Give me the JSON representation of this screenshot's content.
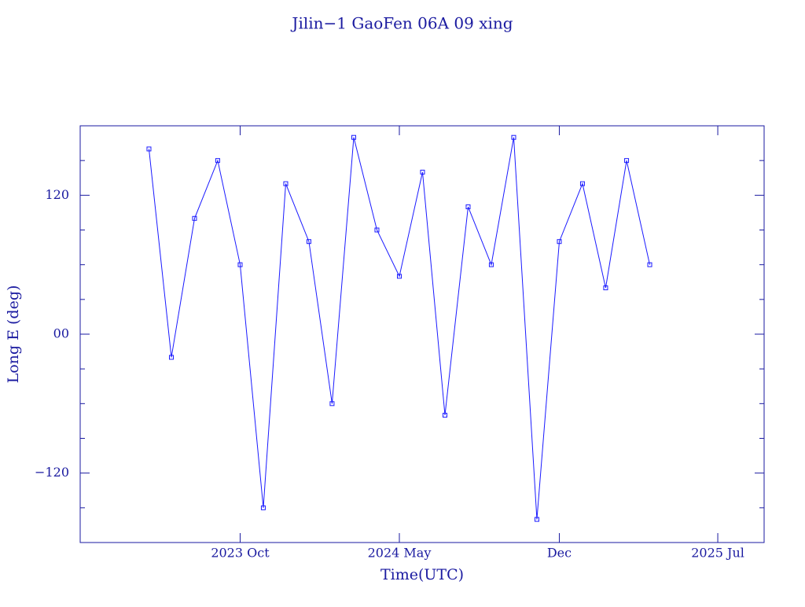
{
  "chart_data": {
    "type": "line",
    "title": "Jilin−1 GaoFen 06A 09 xing",
    "xlabel": "Time(UTC)",
    "ylabel": "Long E (deg)",
    "x": [
      "2023-06",
      "2023-07",
      "2023-08",
      "2023-09",
      "2023-10",
      "2023-11",
      "2023-12",
      "2024-01",
      "2024-02",
      "2024-03",
      "2024-04",
      "2024-05",
      "2024-06",
      "2024-07",
      "2024-08",
      "2024-09",
      "2024-10",
      "2024-11",
      "2024-12",
      "2025-01",
      "2025-02",
      "2025-03",
      "2025-04"
    ],
    "series": [
      {
        "name": "Long E",
        "color": "#1a1aff",
        "values": [
          160,
          -20,
          100,
          150,
          60,
          -150,
          130,
          80,
          -60,
          170,
          90,
          50,
          140,
          -70,
          110,
          60,
          170,
          -160,
          80,
          130,
          40,
          150,
          60
        ]
      }
    ],
    "xlim": [
      "2023-03",
      "2025-09"
    ],
    "xticks": [
      {
        "value": "2023-10",
        "label": "2023 Oct"
      },
      {
        "value": "2024-05",
        "label": "2024 May"
      },
      {
        "value": "2024-12",
        "label": "Dec"
      },
      {
        "value": "2025-07",
        "label": "2025 Jul"
      }
    ],
    "ylim": [
      -180,
      180
    ],
    "yticks": [
      {
        "value": -120,
        "label": "−120"
      },
      {
        "value": 0,
        "label": "00"
      },
      120
    ],
    "yminorticks": [
      -150,
      -90,
      -60,
      -30,
      30,
      60,
      90,
      150
    ],
    "grid": false
  }
}
